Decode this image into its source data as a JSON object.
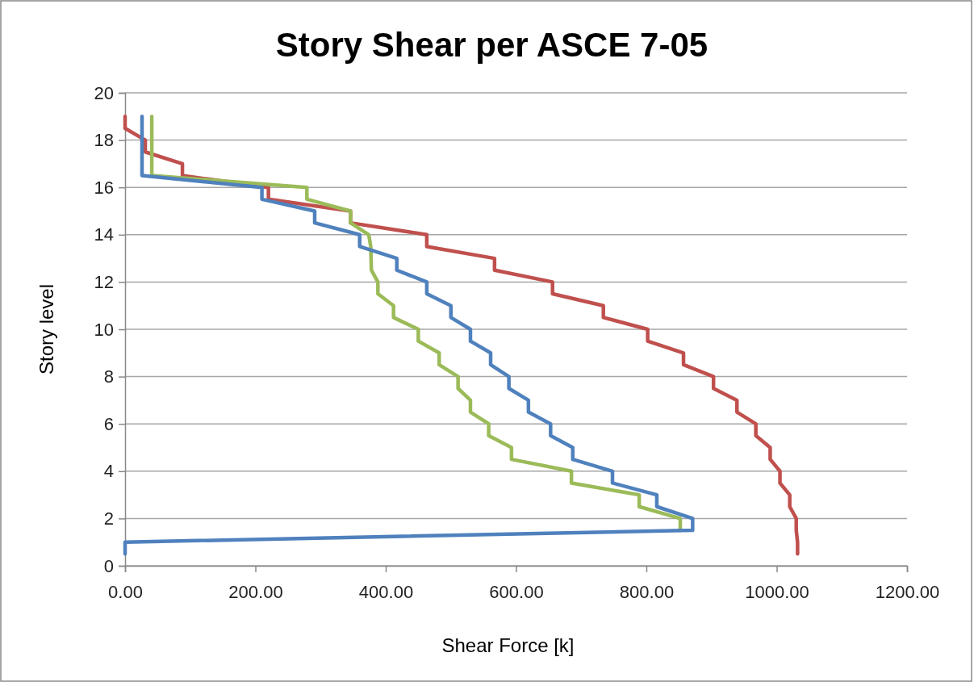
{
  "chart_data": {
    "type": "line",
    "title": "Story Shear per ASCE 7-05",
    "xlabel": "Shear Force [k]",
    "ylabel": "Story level",
    "xlim": [
      0,
      1200
    ],
    "xticks": [
      {
        "value": 0,
        "label": "0.00"
      },
      {
        "value": 200,
        "label": "200.00"
      },
      {
        "value": 400,
        "label": "400.00"
      },
      {
        "value": 600,
        "label": "600.00"
      },
      {
        "value": 800,
        "label": "800.00"
      },
      {
        "value": 1000,
        "label": "1000.00"
      },
      {
        "value": 1200,
        "label": "1200.00"
      }
    ],
    "ylim": [
      0,
      20
    ],
    "yticks": [
      0,
      2,
      4,
      6,
      8,
      10,
      12,
      14,
      16,
      18,
      20
    ],
    "grid": "y",
    "marker": "none",
    "line_style": "solid",
    "series": [
      {
        "color": "#c0504d",
        "x": [
          0,
          0,
          31,
          31,
          88,
          88,
          220,
          220,
          346,
          346,
          463,
          463,
          567,
          567,
          656,
          656,
          734,
          734,
          802,
          802,
          857,
          857,
          903,
          903,
          939,
          939,
          968,
          968,
          990,
          990,
          1005,
          1005,
          1020,
          1020,
          1030,
          1030,
          1032,
          1032
        ],
        "values": [
          19,
          18.5,
          18,
          17.5,
          17,
          16.5,
          16,
          15.5,
          15,
          14.5,
          14,
          13.5,
          13,
          12.5,
          12,
          11.5,
          11,
          10.5,
          10,
          9.5,
          9,
          8.5,
          8,
          7.5,
          7,
          6.5,
          6,
          5.5,
          5,
          4.5,
          4,
          3.5,
          3,
          2.5,
          2,
          1.5,
          1,
          0.5
        ]
      },
      {
        "color": "#9bbb59",
        "x": [
          41,
          41,
          279,
          279,
          346,
          346,
          374,
          377,
          378,
          388,
          388,
          412,
          412,
          450,
          450,
          482,
          482,
          511,
          511,
          530,
          530,
          558,
          558,
          593,
          593,
          685,
          685,
          789,
          789,
          852,
          852
        ],
        "values": [
          19,
          16.5,
          16,
          15.5,
          15,
          14.5,
          14,
          13.5,
          12.5,
          12,
          11.5,
          11,
          10.5,
          10,
          9.5,
          9,
          8.5,
          8,
          7.5,
          7,
          6.5,
          6,
          5.5,
          5,
          4.5,
          4,
          3.5,
          3,
          2.5,
          2,
          1.5
        ]
      },
      {
        "color": "#4f81bd",
        "x": [
          26,
          26,
          210,
          210,
          291,
          291,
          360,
          360,
          417,
          417,
          463,
          463,
          500,
          500,
          530,
          530,
          561,
          561,
          589,
          589,
          619,
          619,
          653,
          653,
          687,
          687,
          748,
          748,
          816,
          816,
          871,
          871,
          0,
          0
        ],
        "values": [
          19,
          16.5,
          16,
          15.5,
          15,
          14.5,
          14,
          13.5,
          13,
          12.5,
          12,
          11.5,
          11,
          10.5,
          10,
          9.5,
          9,
          8.5,
          8,
          7.5,
          7,
          6.5,
          6,
          5.5,
          5,
          4.5,
          4,
          3.5,
          3,
          2.5,
          2,
          1.5,
          1,
          0.5
        ]
      }
    ]
  }
}
